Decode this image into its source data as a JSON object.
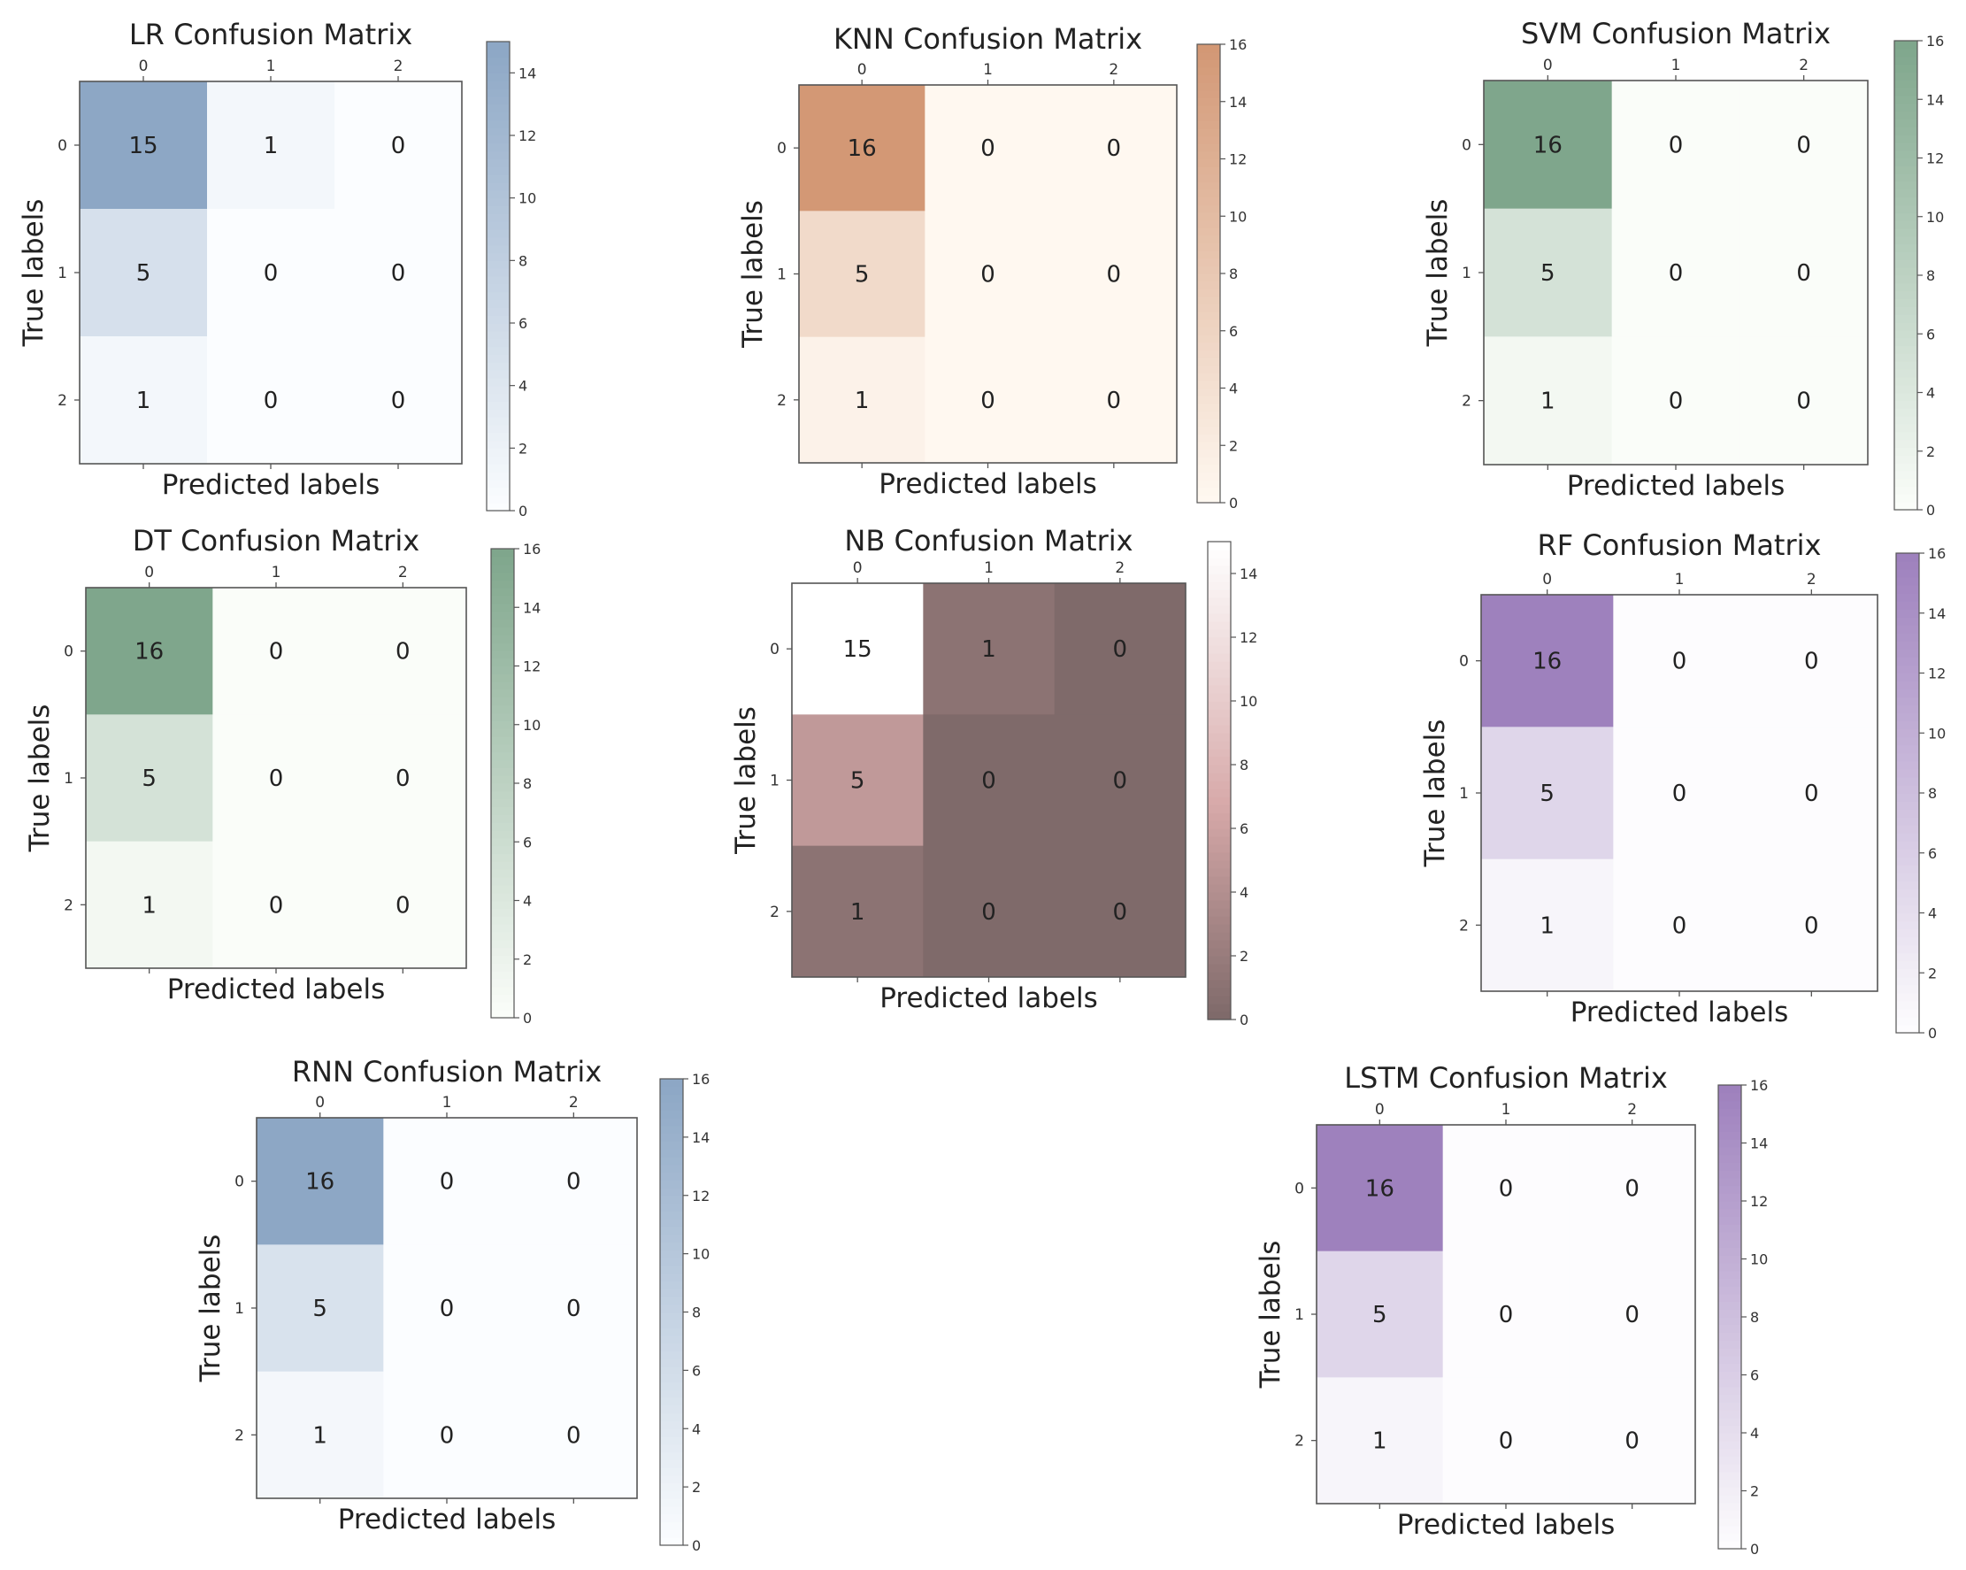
{
  "chart_data": [
    {
      "type": "heatmap",
      "title": "LR Confusion Matrix",
      "xlabel": "Predicted labels",
      "ylabel": "True labels",
      "x_ticks": [
        "0",
        "1",
        "2"
      ],
      "y_ticks": [
        "0",
        "1",
        "2"
      ],
      "matrix": [
        [
          15,
          1,
          0
        ],
        [
          5,
          0,
          0
        ],
        [
          1,
          0,
          0
        ]
      ],
      "colormap": "Blues",
      "color_low": "#f7fbff",
      "color_high": "#2f5f96",
      "cell_alpha": 0.55,
      "background": "#ffffff",
      "colorbar_range": [
        0,
        15
      ],
      "colorbar_ticks": [
        "0",
        "2",
        "4",
        "6",
        "8",
        "10",
        "12",
        "14"
      ]
    },
    {
      "type": "heatmap",
      "title": "KNN Confusion Matrix",
      "xlabel": "Predicted labels",
      "ylabel": "True labels",
      "x_ticks": [
        "0",
        "1",
        "2"
      ],
      "y_ticks": [
        "0",
        "1",
        "2"
      ],
      "matrix": [
        [
          16,
          0,
          0
        ],
        [
          5,
          0,
          0
        ],
        [
          1,
          0,
          0
        ]
      ],
      "colormap": "Oranges",
      "color_low": "#fff5eb",
      "color_high": "#b5541e",
      "cell_alpha": 0.6,
      "background": "#fffdf8",
      "colorbar_range": [
        0,
        16
      ],
      "colorbar_ticks": [
        "0",
        "2",
        "4",
        "6",
        "8",
        "10",
        "12",
        "14",
        "16"
      ]
    },
    {
      "type": "heatmap",
      "title": "SVM Confusion Matrix",
      "xlabel": "Predicted labels",
      "ylabel": "True labels",
      "x_ticks": [
        "0",
        "1",
        "2"
      ],
      "y_ticks": [
        "0",
        "1",
        "2"
      ],
      "matrix": [
        [
          16,
          0,
          0
        ],
        [
          5,
          0,
          0
        ],
        [
          1,
          0,
          0
        ]
      ],
      "colormap": "Greens",
      "color_low": "#f7fcf5",
      "color_high": "#2a6b3f",
      "cell_alpha": 0.6,
      "background": "#ffffff",
      "colorbar_range": [
        0,
        16
      ],
      "colorbar_ticks": [
        "0",
        "2",
        "4",
        "6",
        "8",
        "10",
        "12",
        "14",
        "16"
      ]
    },
    {
      "type": "heatmap",
      "title": "DT Confusion Matrix",
      "xlabel": "Predicted labels",
      "ylabel": "True labels",
      "x_ticks": [
        "0",
        "1",
        "2"
      ],
      "y_ticks": [
        "0",
        "1",
        "2"
      ],
      "matrix": [
        [
          16,
          0,
          0
        ],
        [
          5,
          0,
          0
        ],
        [
          1,
          0,
          0
        ]
      ],
      "colormap": "Greens",
      "color_low": "#f7fcf5",
      "color_high": "#2a6b3f",
      "cell_alpha": 0.6,
      "background": "#ffffff",
      "colorbar_range": [
        0,
        16
      ],
      "colorbar_ticks": [
        "0",
        "2",
        "4",
        "6",
        "8",
        "10",
        "12",
        "14",
        "16"
      ]
    },
    {
      "type": "heatmap",
      "title": "NB Confusion Matrix",
      "xlabel": "Predicted labels",
      "ylabel": "True labels",
      "x_ticks": [
        "0",
        "1",
        "2"
      ],
      "y_ticks": [
        "0",
        "1",
        "2"
      ],
      "matrix": [
        [
          15,
          1,
          0
        ],
        [
          5,
          0,
          0
        ],
        [
          1,
          0,
          0
        ]
      ],
      "colormap": "pink",
      "color_low": "#7f6a6a",
      "color_mid": "#d7a9a9",
      "color_high": "#ffffff",
      "cell_alpha": 1.0,
      "background": "#ffffff",
      "colorbar_range": [
        0,
        15
      ],
      "colorbar_ticks": [
        "0",
        "2",
        "4",
        "6",
        "8",
        "10",
        "12",
        "14"
      ]
    },
    {
      "type": "heatmap",
      "title": "RF Confusion Matrix",
      "xlabel": "Predicted labels",
      "ylabel": "True labels",
      "x_ticks": [
        "0",
        "1",
        "2"
      ],
      "y_ticks": [
        "0",
        "1",
        "2"
      ],
      "matrix": [
        [
          16,
          0,
          0
        ],
        [
          5,
          0,
          0
        ],
        [
          1,
          0,
          0
        ]
      ],
      "colormap": "Purples",
      "color_low": "#fcfbfd",
      "color_high": "#6a3d9a",
      "cell_alpha": 0.65,
      "background": "#ffffff",
      "colorbar_range": [
        0,
        16
      ],
      "colorbar_ticks": [
        "0",
        "2",
        "4",
        "6",
        "8",
        "10",
        "12",
        "14",
        "16"
      ]
    },
    {
      "type": "heatmap",
      "title": "RNN Confusion Matrix",
      "xlabel": "Predicted labels",
      "ylabel": "True labels",
      "x_ticks": [
        "0",
        "1",
        "2"
      ],
      "y_ticks": [
        "0",
        "1",
        "2"
      ],
      "matrix": [
        [
          16,
          0,
          0
        ],
        [
          5,
          0,
          0
        ],
        [
          1,
          0,
          0
        ]
      ],
      "colormap": "Blues",
      "color_low": "#f7fbff",
      "color_high": "#2f5f96",
      "cell_alpha": 0.55,
      "background": "#ffffff",
      "colorbar_range": [
        0,
        16
      ],
      "colorbar_ticks": [
        "0",
        "2",
        "4",
        "6",
        "8",
        "10",
        "12",
        "14",
        "16"
      ]
    },
    {
      "type": "heatmap",
      "title": "LSTM Confusion Matrix",
      "xlabel": "Predicted labels",
      "ylabel": "True labels",
      "x_ticks": [
        "0",
        "1",
        "2"
      ],
      "y_ticks": [
        "0",
        "1",
        "2"
      ],
      "matrix": [
        [
          16,
          0,
          0
        ],
        [
          5,
          0,
          0
        ],
        [
          1,
          0,
          0
        ]
      ],
      "colormap": "Purples",
      "color_low": "#fcfbfd",
      "color_high": "#6a3d9a",
      "cell_alpha": 0.65,
      "background": "#ffffff",
      "colorbar_range": [
        0,
        16
      ],
      "colorbar_ticks": [
        "0",
        "2",
        "4",
        "6",
        "8",
        "10",
        "12",
        "14",
        "16"
      ]
    }
  ]
}
